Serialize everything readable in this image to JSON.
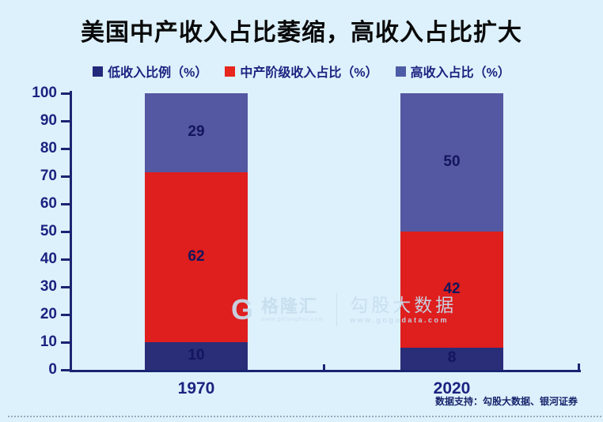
{
  "title": "美国中产收入占比萎缩，高收入占比扩大",
  "legend": [
    {
      "label": "低收入比例（%）",
      "color": "#232a7c"
    },
    {
      "label": "中产阶级收入占比（%）",
      "color": "#e7261d"
    },
    {
      "label": "高收入占比（%）",
      "color": "#4d5ca6"
    }
  ],
  "chart_data": {
    "type": "bar",
    "stacked": true,
    "title": "美国中产收入占比萎缩，高收入占比扩大",
    "categories": [
      "1970",
      "2020"
    ],
    "series": [
      {
        "name": "低收入比例（%）",
        "color": "#2a2d78",
        "values": [
          10,
          8
        ]
      },
      {
        "name": "中产阶级收入占比（%）",
        "color": "#df1e1e",
        "values": [
          62,
          42
        ]
      },
      {
        "name": "高收入占比（%）",
        "color": "#5457a1",
        "values": [
          29,
          50
        ]
      }
    ],
    "ylim": [
      0,
      100
    ],
    "yticks": [
      0,
      10,
      20,
      30,
      40,
      50,
      60,
      70,
      80,
      90,
      100
    ],
    "xlabel": "",
    "ylabel": "",
    "grid": false,
    "legend_position": "top"
  },
  "watermark": {
    "logo_text": "G",
    "brand": "格隆汇",
    "brand_url": "www.gelonghui.com",
    "right_brand": "勾股大数据",
    "right_url": "www.gogudata.com"
  },
  "footer": "数据支持：勾股大数据、银河证券"
}
